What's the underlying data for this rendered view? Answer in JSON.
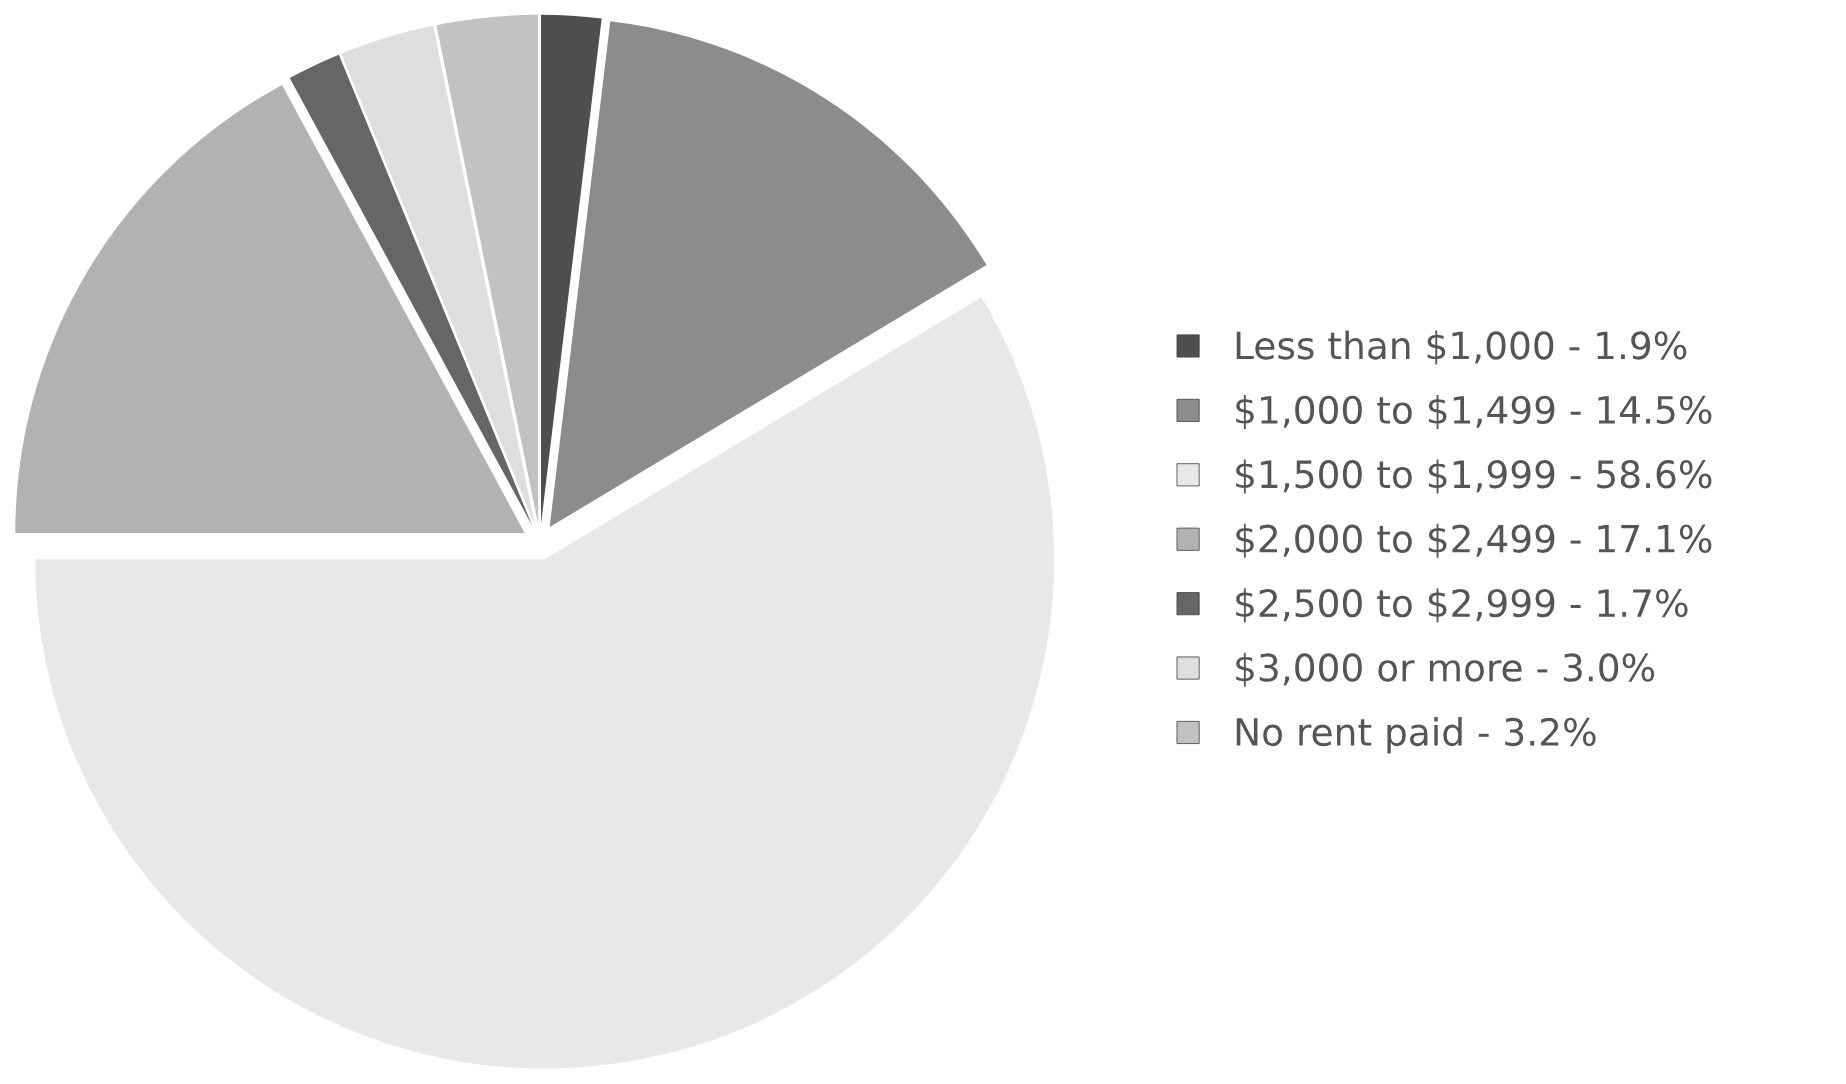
{
  "chart_data": {
    "type": "pie",
    "categories": [
      "Less than $1,000",
      "$1,000 to $1,499",
      "$1,500 to $1,999",
      "$2,000 to $2,499",
      "$2,500 to $2,999",
      "$3,000 or more",
      "No rent paid"
    ],
    "values": [
      1.9,
      14.5,
      58.6,
      17.1,
      1.7,
      3.0,
      3.2
    ],
    "value_labels": [
      "1.9%",
      "14.5%",
      "58.6%",
      "17.1%",
      "1.7%",
      "3.0%",
      "3.2%"
    ],
    "colors": [
      "#4f4f4f",
      "#8c8c8c",
      "#e8e8e8",
      "#b2b2b2",
      "#666666",
      "#dedede",
      "#c2c2c2"
    ],
    "legend": "right"
  }
}
